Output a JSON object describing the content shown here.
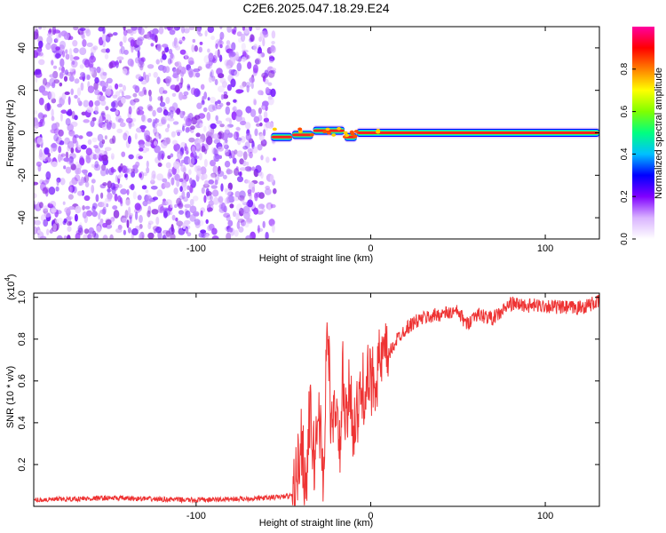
{
  "figure": {
    "title": "C2E6.2025.047.18.29.E24"
  },
  "chart_data": [
    {
      "type": "heatmap",
      "name": "spectrogram",
      "title": "C2E6.2025.047.18.29.E24",
      "xlabel": "Height of straight line (km)",
      "ylabel": "Frequency (Hz)",
      "xlim": [
        -193,
        131
      ],
      "ylim": [
        -50,
        50
      ],
      "xticks": [
        -100,
        0,
        100
      ],
      "xtick_labels": [
        "-100",
        "0",
        "100"
      ],
      "yticks": [
        -40,
        -20,
        0,
        20,
        40
      ],
      "ytick_labels": [
        "-40",
        "-20",
        "0",
        "20",
        "40"
      ],
      "colorbar": {
        "label": "Normalized spectral amplitude",
        "range": [
          0,
          1
        ],
        "ticks": [
          0.0,
          0.2,
          0.4,
          0.6,
          0.8
        ],
        "tick_labels": [
          "0.0",
          "0.2",
          "0.4",
          "0.6",
          "0.8"
        ],
        "colors": [
          "#ffffff",
          "#d9b3ff",
          "#8000ff",
          "#0000ff",
          "#00c0ff",
          "#00ff80",
          "#80ff00",
          "#ffff00",
          "#ff8000",
          "#ff0000",
          "#ff00a0"
        ]
      },
      "noise_region_x": [
        -193,
        -55
      ],
      "signal_line_frequency": 0,
      "signal_segments": [
        {
          "x": [
            -57,
            -45
          ],
          "frequency": -2,
          "amplitude": 0.6
        },
        {
          "x": [
            -45,
            -33
          ],
          "frequency": -1,
          "amplitude": 0.75
        },
        {
          "x": [
            -33,
            -15
          ],
          "frequency": 1,
          "amplitude": 0.8
        },
        {
          "x": [
            -15,
            -8
          ],
          "frequency": -2,
          "amplitude": 0.85
        },
        {
          "x": [
            -8,
            131
          ],
          "frequency": 0,
          "amplitude": 0.95
        }
      ]
    },
    {
      "type": "line",
      "name": "snr",
      "xlabel": "Height of straight line (km)",
      "ylabel": "SNR (10 * v/v)",
      "scale_note": "(x10",
      "scale_exponent": "4",
      "xlim": [
        -193,
        131
      ],
      "ylim": [
        0,
        1.02
      ],
      "xticks": [
        -100,
        0,
        100
      ],
      "xtick_labels": [
        "-100",
        "0",
        "100"
      ],
      "yticks": [
        0.2,
        0.4,
        0.6,
        0.8,
        1.0
      ],
      "ytick_labels": [
        "0.2",
        "0.4",
        "0.6",
        "0.8",
        "1.0"
      ],
      "line_color": "#ee3333",
      "series": [
        {
          "x": [
            -193,
            -150,
            -100,
            -60,
            -45,
            -42,
            -40,
            -37,
            -35,
            -32,
            -30,
            -27,
            -25,
            -22,
            -20,
            -18,
            -16,
            -14,
            -12,
            -10,
            -8,
            -5,
            -2,
            0,
            5,
            10,
            15,
            20,
            25,
            30,
            40,
            50,
            55,
            60,
            70,
            75,
            80,
            90,
            100,
            110,
            120,
            131
          ],
          "values": [
            0.03,
            0.04,
            0.03,
            0.04,
            0.05,
            0.15,
            0.35,
            0.08,
            0.45,
            0.2,
            0.5,
            0.12,
            0.88,
            0.3,
            0.55,
            0.2,
            0.62,
            0.35,
            0.58,
            0.4,
            0.42,
            0.55,
            0.6,
            0.58,
            0.68,
            0.72,
            0.8,
            0.85,
            0.88,
            0.9,
            0.92,
            0.93,
            0.87,
            0.92,
            0.9,
            0.93,
            0.97,
            0.96,
            0.96,
            0.95,
            0.95,
            0.98
          ]
        }
      ]
    }
  ]
}
